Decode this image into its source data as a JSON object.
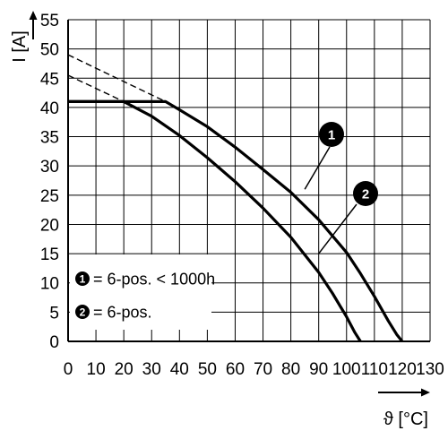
{
  "chart_data": {
    "type": "line",
    "ylabel": "I [A]",
    "xlabel": "ϑ [°C]",
    "xlim": [
      0,
      130
    ],
    "ylim": [
      0,
      55
    ],
    "x_ticks": [
      0,
      10,
      20,
      30,
      40,
      50,
      60,
      70,
      80,
      90,
      100,
      110,
      120,
      130
    ],
    "y_ticks": [
      0,
      5,
      10,
      15,
      20,
      25,
      30,
      35,
      40,
      45,
      50,
      55
    ],
    "grid": true,
    "legend_position": "lower-left",
    "series": [
      {
        "marker": "1",
        "legend_label": "= 6-pos. < 1000h",
        "x": [
          0,
          35,
          40,
          50,
          60,
          70,
          80,
          90,
          100,
          105,
          110,
          115,
          118,
          120
        ],
        "y": [
          41,
          41,
          39.6,
          36.7,
          33.2,
          29.4,
          25.5,
          20.8,
          15.2,
          11.6,
          7.7,
          3.5,
          1.2,
          0
        ],
        "dashed_extension": {
          "x": [
            0,
            35
          ],
          "y": [
            49,
            41
          ]
        }
      },
      {
        "marker": "2",
        "legend_label": "= 6-pos.",
        "x": [
          0,
          20,
          30,
          40,
          50,
          60,
          70,
          80,
          90,
          95,
          100,
          103,
          105
        ],
        "y": [
          41,
          41,
          38.5,
          35.2,
          31.4,
          27.3,
          22.8,
          17.8,
          11.8,
          8.2,
          4.2,
          1.5,
          0
        ],
        "dashed_extension": {
          "x": [
            0,
            20
          ],
          "y": [
            45.5,
            41
          ]
        }
      }
    ],
    "annotations": [
      {
        "text": "1",
        "points_to": {
          "x": 85,
          "y": 26
        }
      },
      {
        "text": "2",
        "points_to": {
          "x": 90,
          "y": 15
        }
      }
    ]
  }
}
